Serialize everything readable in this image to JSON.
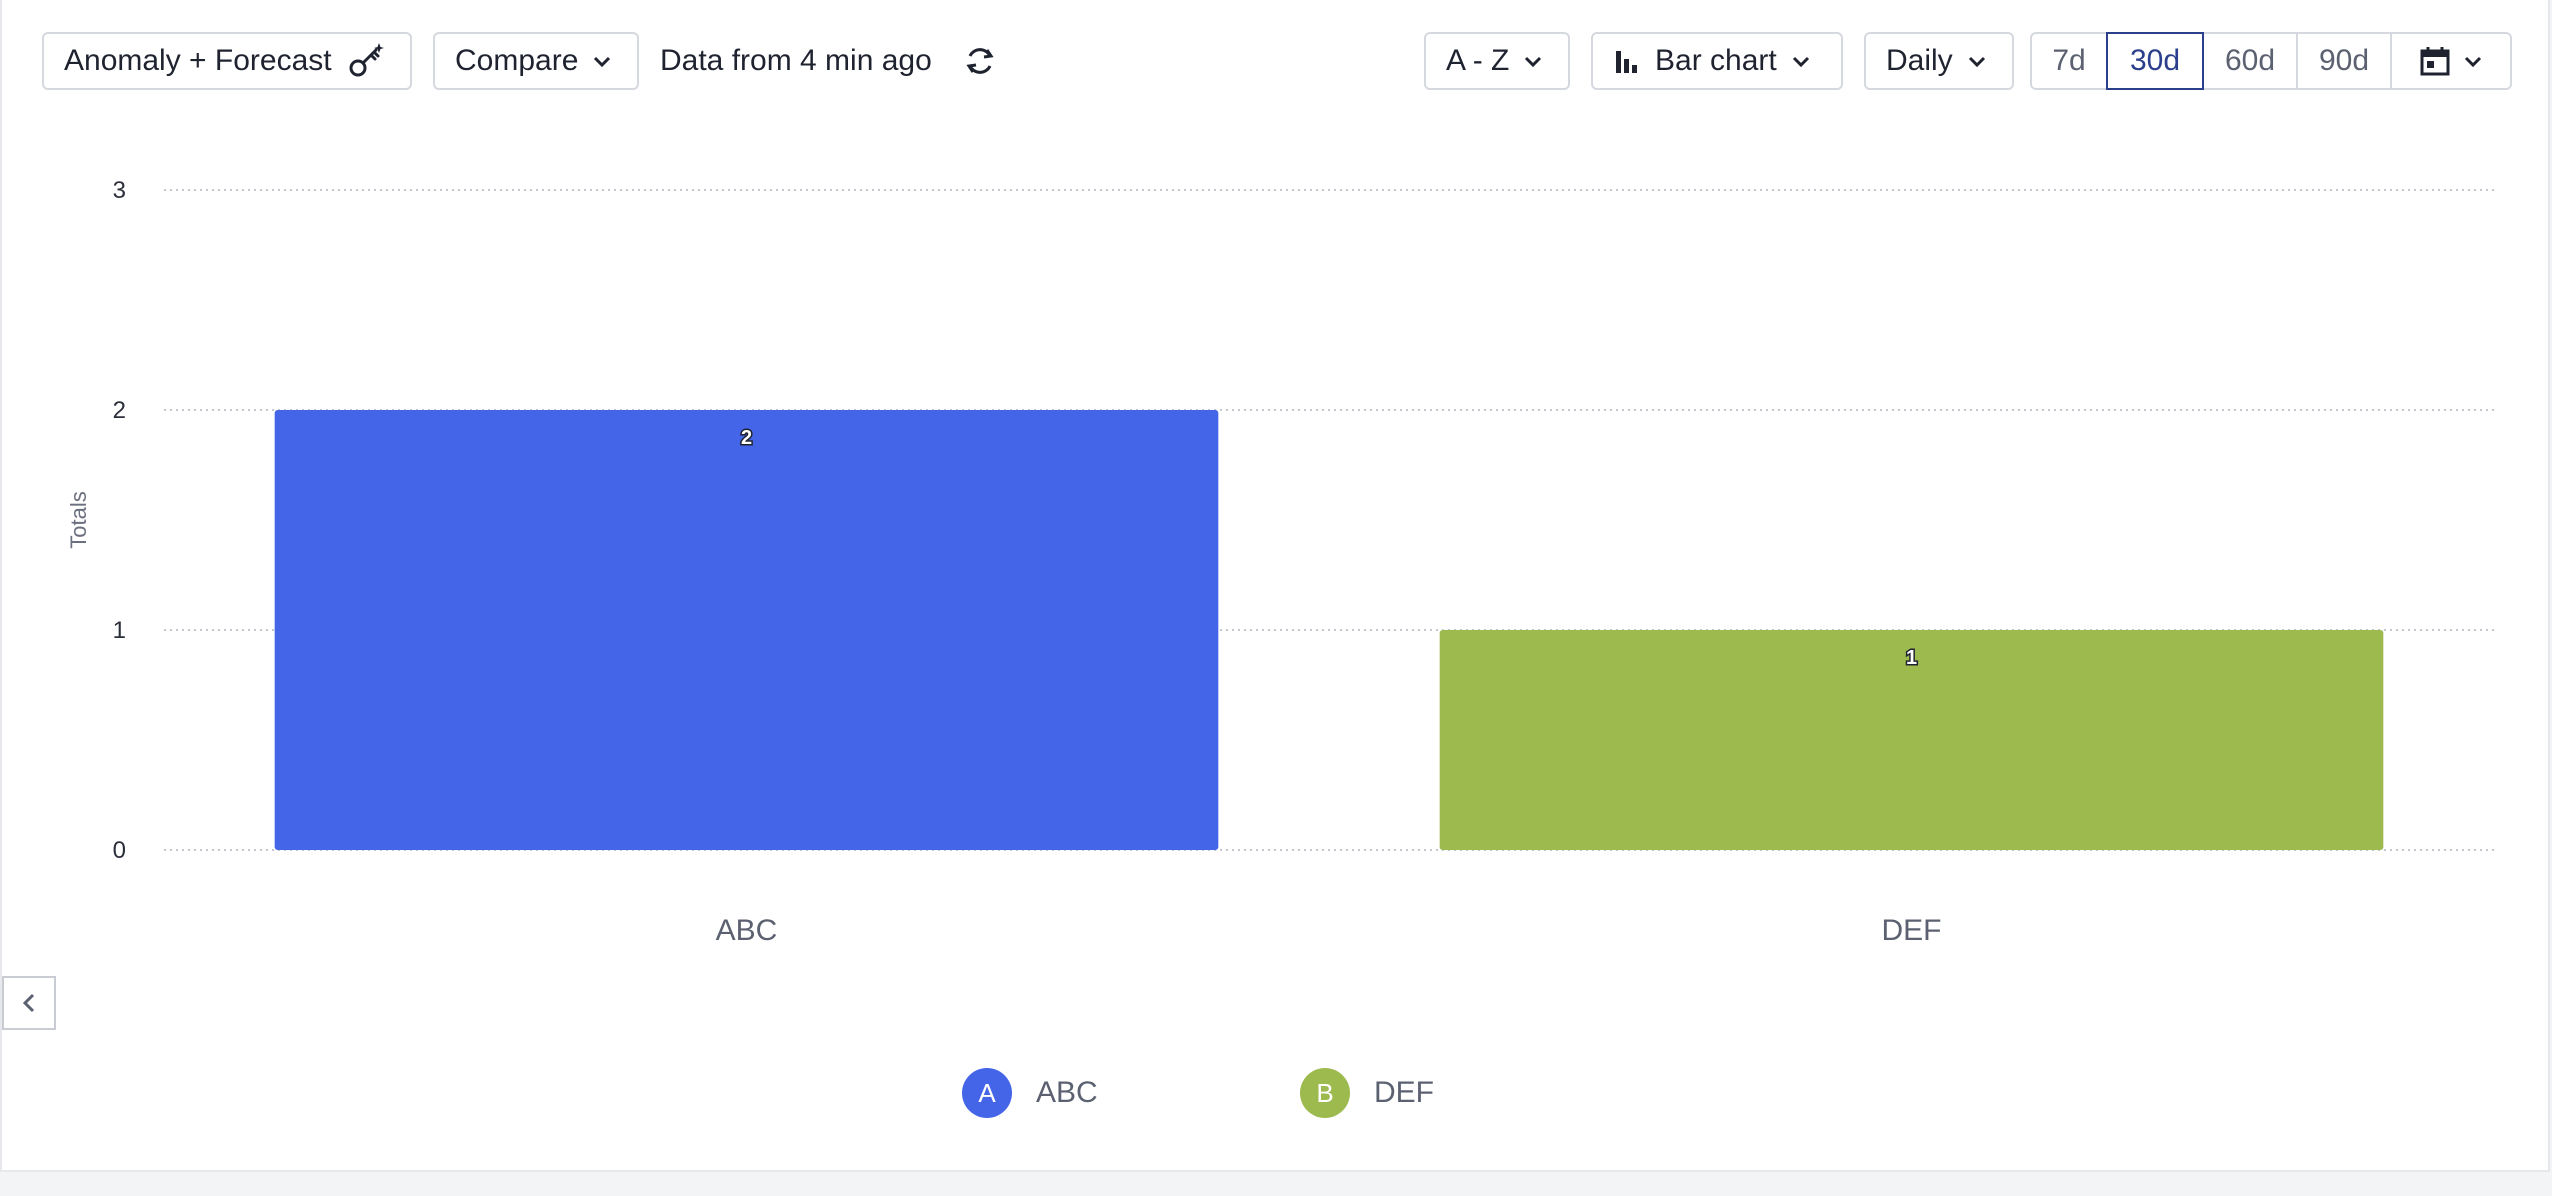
{
  "toolbar": {
    "anomaly_label": "Anomaly + Forecast",
    "compare_label": "Compare",
    "data_status": "Data from 4 min ago",
    "sort_label": "A - Z",
    "chart_type_label": "Bar chart",
    "interval_label": "Daily",
    "ranges": [
      "7d",
      "30d",
      "60d",
      "90d"
    ],
    "active_range": "30d"
  },
  "legend": {
    "items": [
      {
        "badge": "A",
        "label": "ABC",
        "color": "#4565e8"
      },
      {
        "badge": "B",
        "label": "DEF",
        "color": "#9cba4e"
      }
    ]
  },
  "chart_data": {
    "type": "bar",
    "categories": [
      "ABC",
      "DEF"
    ],
    "values": [
      2,
      1
    ],
    "colors": [
      "#4565e8",
      "#9cba4e"
    ],
    "ylabel": "Totals",
    "xlabel": "",
    "ylim": [
      0,
      3
    ],
    "yticks": [
      0,
      1,
      2,
      3
    ],
    "grid": true,
    "data_labels": true
  }
}
